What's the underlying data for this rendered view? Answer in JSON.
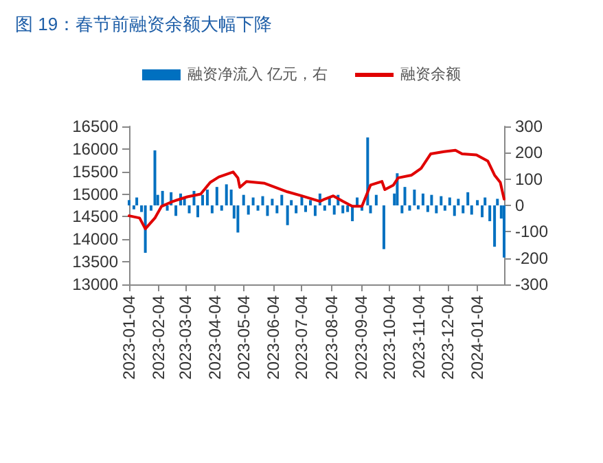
{
  "chart_data": {
    "type": "line",
    "title": "图 19：春节前融资余额大幅下降",
    "legend": "top",
    "grid": false,
    "marker": "none",
    "xlim": [
      "2023-01-04",
      "2024-02-01"
    ],
    "xticks": [
      "2023-01-04",
      "2023-02-04",
      "2023-03-04",
      "2023-04-04",
      "2023-05-04",
      "2023-06-04",
      "2023-07-04",
      "2023-08-04",
      "2023-09-04",
      "2023-10-04",
      "2023-11-04",
      "2023-12-04",
      "2024-01-04"
    ],
    "ylim": [
      13000,
      16500
    ],
    "yticks": [
      13000,
      13500,
      14000,
      14500,
      15000,
      15500,
      16000,
      16500
    ],
    "y2lim": [
      -300,
      300
    ],
    "y2ticks": [
      -300,
      -200,
      -100,
      0,
      100,
      200,
      300
    ],
    "series": [
      {
        "name": "融资净流入 亿元，右",
        "type": "bar",
        "axis": "y2",
        "color": "#0070c0",
        "x": [
          "2023-01-04",
          "2023-01-09",
          "2023-01-12",
          "2023-01-17",
          "2023-01-21",
          "2023-01-27",
          "2023-01-31",
          "2023-02-03",
          "2023-02-08",
          "2023-02-13",
          "2023-02-17",
          "2023-02-22",
          "2023-02-27",
          "2023-03-03",
          "2023-03-08",
          "2023-03-13",
          "2023-03-17",
          "2023-03-22",
          "2023-03-27",
          "2023-04-01",
          "2023-04-06",
          "2023-04-11",
          "2023-04-16",
          "2023-04-21",
          "2023-04-24",
          "2023-04-28",
          "2023-05-04",
          "2023-05-09",
          "2023-05-14",
          "2023-05-19",
          "2023-05-24",
          "2023-05-29",
          "2023-06-03",
          "2023-06-08",
          "2023-06-13",
          "2023-06-19",
          "2023-06-23",
          "2023-06-28",
          "2023-07-04",
          "2023-07-08",
          "2023-07-13",
          "2023-07-18",
          "2023-07-23",
          "2023-07-28",
          "2023-08-02",
          "2023-08-07",
          "2023-08-11",
          "2023-08-16",
          "2023-08-21",
          "2023-08-26",
          "2023-08-31",
          "2023-09-05",
          "2023-09-11",
          "2023-09-14",
          "2023-09-20",
          "2023-09-28",
          "2023-10-09",
          "2023-10-12",
          "2023-10-17",
          "2023-10-20",
          "2023-10-25",
          "2023-10-30",
          "2023-11-03",
          "2023-11-08",
          "2023-11-13",
          "2023-11-17",
          "2023-11-22",
          "2023-11-27",
          "2023-12-01",
          "2023-12-06",
          "2023-12-11",
          "2023-12-15",
          "2023-12-20",
          "2023-12-25",
          "2023-12-29",
          "2024-01-04",
          "2024-01-09",
          "2024-01-12",
          "2024-01-17",
          "2024-01-22",
          "2024-01-25",
          "2024-01-29",
          "2024-02-01"
        ],
        "values": [
          20,
          -15,
          30,
          -25,
          -180,
          -20,
          209,
          40,
          55,
          -20,
          50,
          -40,
          45,
          30,
          -30,
          55,
          -45,
          40,
          60,
          -30,
          70,
          -20,
          80,
          60,
          -50,
          -103,
          40,
          -35,
          30,
          -20,
          35,
          -40,
          25,
          -30,
          40,
          -75,
          20,
          -30,
          35,
          -25,
          20,
          -40,
          45,
          -20,
          30,
          -35,
          40,
          -30,
          -25,
          -60,
          30,
          -20,
          258,
          -30,
          40,
          -166,
          45,
          122,
          -30,
          70,
          -20,
          60,
          -15,
          45,
          -25,
          40,
          -30,
          35,
          -20,
          30,
          -40,
          25,
          -30,
          50,
          -35,
          20,
          -45,
          30,
          -60,
          -157,
          25,
          -50,
          -198
        ]
      },
      {
        "name": "融资余额",
        "color": "#e00000",
        "x": [
          "2023-01-04",
          "2023-01-15",
          "2023-01-21",
          "2023-01-31",
          "2023-02-07",
          "2023-02-19",
          "2023-03-06",
          "2023-03-20",
          "2023-03-30",
          "2023-04-08",
          "2023-04-23",
          "2023-04-28",
          "2023-04-30",
          "2023-05-07",
          "2023-05-26",
          "2023-06-19",
          "2023-07-04",
          "2023-07-23",
          "2023-07-28",
          "2023-08-06",
          "2023-08-16",
          "2023-08-26",
          "2023-09-05",
          "2023-09-14",
          "2023-09-26",
          "2023-09-29",
          "2023-10-08",
          "2023-10-13",
          "2023-10-27",
          "2023-11-06",
          "2023-11-16",
          "2023-11-30",
          "2023-12-12",
          "2023-12-19",
          "2024-01-03",
          "2024-01-15",
          "2024-01-22",
          "2024-01-28",
          "2024-02-01"
        ],
        "values": [
          14520,
          14470,
          14230,
          14470,
          14730,
          14840,
          14940,
          15000,
          15260,
          15380,
          15490,
          15360,
          15150,
          15280,
          15240,
          15050,
          14960,
          14840,
          14890,
          14960,
          14840,
          14730,
          14730,
          15200,
          15280,
          15100,
          15200,
          15360,
          15420,
          15570,
          15890,
          15940,
          15970,
          15890,
          15870,
          15730,
          15420,
          15260,
          14890
        ]
      }
    ]
  }
}
